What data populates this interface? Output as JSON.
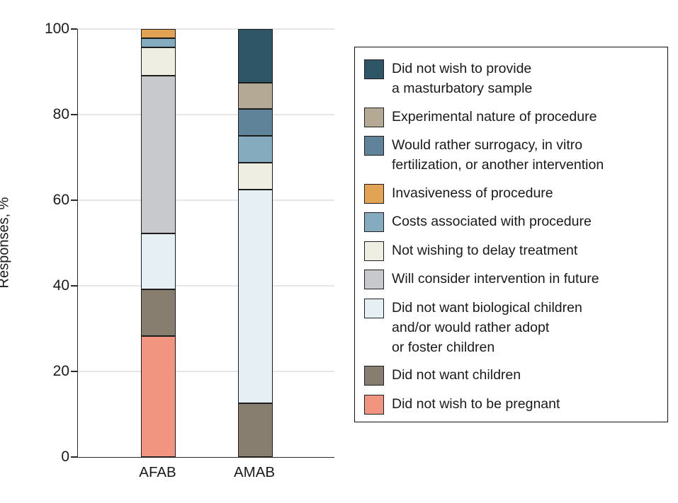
{
  "figure": {
    "ylabel": "Responses, %",
    "x_categories": [
      "AFAB",
      "AMAB"
    ],
    "ytick_labels": [
      "0",
      "20",
      "40",
      "60",
      "80",
      "100"
    ]
  },
  "colors": {
    "background": "#ffffff",
    "axis": "#2b2b2b",
    "gridline": "#e6e6e6",
    "text": "#1a1a1a",
    "segment_border": "#1c1c1c",
    "legend_border": "#111111"
  },
  "legend": {
    "items": [
      {
        "color": "#2F5666",
        "label": "Did not wish to provide\na masturbatory sample"
      },
      {
        "color": "#B3A995",
        "label": "Experimental nature of procedure"
      },
      {
        "color": "#5F8499",
        "label": "Would rather surrogacy, in vitro\nfertilization, or another intervention"
      },
      {
        "color": "#E2A355",
        "label": "Invasiveness of procedure"
      },
      {
        "color": "#85ABBE",
        "label": "Costs associated with procedure"
      },
      {
        "color": "#EFEEE2",
        "label": "Not wishing to delay treatment"
      },
      {
        "color": "#C8C9CC",
        "label": "Will consider intervention in future"
      },
      {
        "color": "#E5EFF4",
        "label": "Did not want biological children\nand/or would rather adopt\nor foster children"
      },
      {
        "color": "#877E6F",
        "label": "Did not want children"
      },
      {
        "color": "#F29580",
        "label": "Did not wish to be pregnant"
      }
    ]
  },
  "chart_data": {
    "type": "bar",
    "stacked": true,
    "categories": [
      "AFAB",
      "AMAB"
    ],
    "title": "",
    "xlabel": "",
    "ylabel": "Responses, %",
    "ylim": [
      0,
      100
    ],
    "yticks": [
      0,
      20,
      40,
      60,
      80,
      100
    ],
    "grid": true,
    "legend_position": "right",
    "stack_order": "bottom-to-top",
    "series": [
      {
        "name": "Did not wish to be pregnant",
        "color": "#F29580",
        "values": [
          28.26,
          0
        ]
      },
      {
        "name": "Did not want children",
        "color": "#877E6F",
        "values": [
          10.87,
          12.5
        ]
      },
      {
        "name": "Did not want biological children and/or would rather adopt or foster children",
        "color": "#E5EFF4",
        "values": [
          13.04,
          50
        ]
      },
      {
        "name": "Will consider intervention in future",
        "color": "#C8C9CC",
        "values": [
          36.96,
          0
        ]
      },
      {
        "name": "Not wishing to delay treatment",
        "color": "#EFEEE2",
        "values": [
          6.52,
          6.25
        ]
      },
      {
        "name": "Costs associated with procedure",
        "color": "#85ABBE",
        "values": [
          2.17,
          6.25
        ]
      },
      {
        "name": "Invasiveness of procedure",
        "color": "#E2A355",
        "values": [
          2.17,
          0
        ]
      },
      {
        "name": "Would rather surrogacy, in vitro fertilization, or another intervention",
        "color": "#5F8499",
        "values": [
          0,
          6.25
        ]
      },
      {
        "name": "Experimental nature of procedure",
        "color": "#B3A995",
        "values": [
          0,
          6.25
        ]
      },
      {
        "name": "Did not wish to provide a masturbatory sample",
        "color": "#2F5666",
        "values": [
          0,
          12.5
        ]
      }
    ]
  }
}
